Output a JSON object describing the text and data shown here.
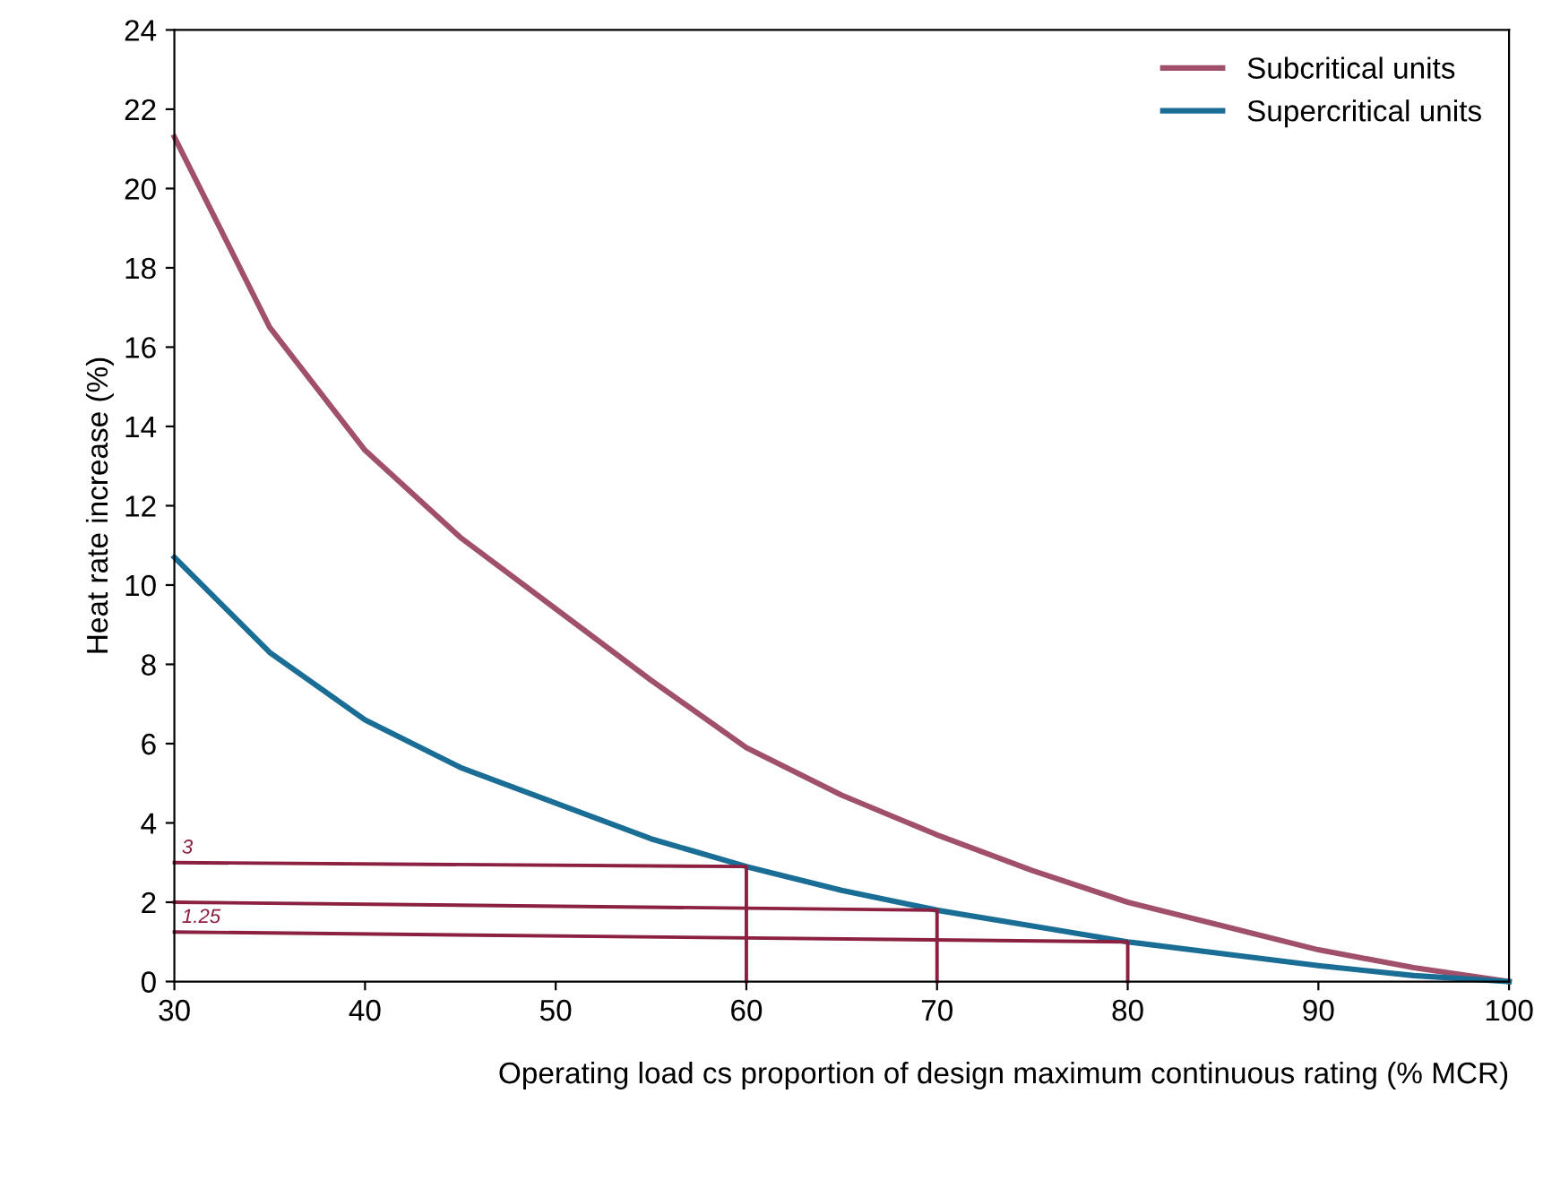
{
  "chart_data": {
    "type": "line",
    "xlabel": "Operating load cs proportion of design maximum continuous rating (% MCR)",
    "ylabel": "Heat rate increase (%)",
    "xlim": [
      30,
      100
    ],
    "xticks": [
      30,
      40,
      50,
      60,
      70,
      80,
      90,
      100
    ],
    "ylim": [
      0,
      24
    ],
    "yticks": [
      0,
      2,
      4,
      6,
      8,
      10,
      12,
      14,
      16,
      18,
      20,
      22,
      24
    ],
    "grid": false,
    "legend": "top right",
    "marker": "none",
    "line_style": "solid",
    "series": [
      {
        "name": "Subcritical units",
        "color": "#a0506a",
        "x": [
          30,
          35,
          40,
          45,
          50,
          55,
          60,
          65,
          70,
          75,
          80,
          85,
          90,
          95,
          100
        ],
        "values": [
          21.3,
          16.5,
          13.4,
          11.2,
          9.4,
          7.6,
          5.9,
          4.7,
          3.7,
          2.8,
          2.0,
          1.4,
          0.8,
          0.35,
          0
        ]
      },
      {
        "name": "Supercritical units",
        "color": "#1a6e96",
        "x": [
          30,
          35,
          40,
          45,
          50,
          55,
          60,
          65,
          70,
          75,
          80,
          85,
          90,
          95,
          100
        ],
        "values": [
          10.7,
          8.3,
          6.6,
          5.4,
          4.5,
          3.6,
          2.9,
          2.3,
          1.8,
          1.4,
          1.0,
          0.7,
          0.4,
          0.15,
          0
        ]
      },
      {
        "color": "#8b2040",
        "x": [
          30,
          60,
          60
        ],
        "values": [
          3,
          2.9,
          0
        ]
      },
      {
        "color": "#8b2040",
        "x": [
          30,
          70,
          70
        ],
        "values": [
          2,
          1.8,
          0
        ]
      },
      {
        "color": "#8b2040",
        "x": [
          30,
          80,
          80
        ],
        "values": [
          1.25,
          1.0,
          0
        ]
      }
    ],
    "annotations": [
      {
        "text": "3",
        "x": 30,
        "y": 3
      },
      {
        "text": "1.25",
        "x": 30,
        "y": 1.25
      }
    ]
  }
}
